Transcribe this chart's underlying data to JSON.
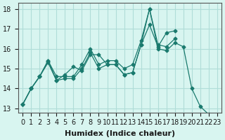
{
  "title": "",
  "xlabel": "Humidex (Indice chaleur)",
  "ylabel": "",
  "bg_color": "#d8f5f0",
  "grid_color": "#b0ddd8",
  "line_color": "#1a7a6e",
  "xlim": [
    -0.5,
    23.5
  ],
  "ylim": [
    12.8,
    18.3
  ],
  "xticks": [
    0,
    1,
    2,
    3,
    4,
    5,
    6,
    7,
    8,
    9,
    10,
    11,
    12,
    13,
    14,
    15,
    16,
    17,
    18,
    19,
    20,
    21,
    22,
    23
  ],
  "yticks": [
    13,
    14,
    15,
    16,
    17,
    18
  ],
  "line1_x": [
    0,
    1,
    2,
    3,
    4,
    5,
    6,
    7,
    8,
    9,
    10,
    11,
    12,
    13,
    14,
    15,
    16,
    17,
    18,
    19,
    20,
    21,
    22
  ],
  "line1_y": [
    13.2,
    14.0,
    14.6,
    15.4,
    14.4,
    14.5,
    14.5,
    15.0,
    15.8,
    15.0,
    15.2,
    15.2,
    14.7,
    14.8,
    16.2,
    18.0,
    16.0,
    15.9,
    16.3,
    16.1,
    14.0,
    13.1,
    12.7
  ],
  "line2_x": [
    0,
    1,
    2,
    3,
    4,
    5,
    6,
    7,
    8,
    9,
    10,
    11,
    12,
    13,
    14,
    15,
    16,
    17,
    18
  ],
  "line2_y": [
    13.2,
    14.0,
    14.6,
    15.3,
    14.4,
    14.7,
    15.1,
    14.9,
    15.7,
    15.7,
    15.2,
    15.2,
    14.7,
    14.8,
    16.2,
    17.2,
    16.1,
    16.8,
    16.9
  ],
  "line3_x": [
    0,
    1,
    2,
    3,
    4,
    5,
    6,
    7,
    8,
    9,
    10,
    11,
    12,
    13,
    14,
    15,
    16,
    17,
    18
  ],
  "line3_y": [
    13.2,
    14.0,
    14.6,
    15.4,
    14.6,
    14.6,
    14.6,
    15.2,
    16.0,
    15.2,
    15.4,
    15.4,
    15.0,
    15.2,
    16.4,
    18.0,
    16.2,
    16.1,
    16.5
  ],
  "xlabel_fontsize": 8,
  "tick_fontsize": 7
}
